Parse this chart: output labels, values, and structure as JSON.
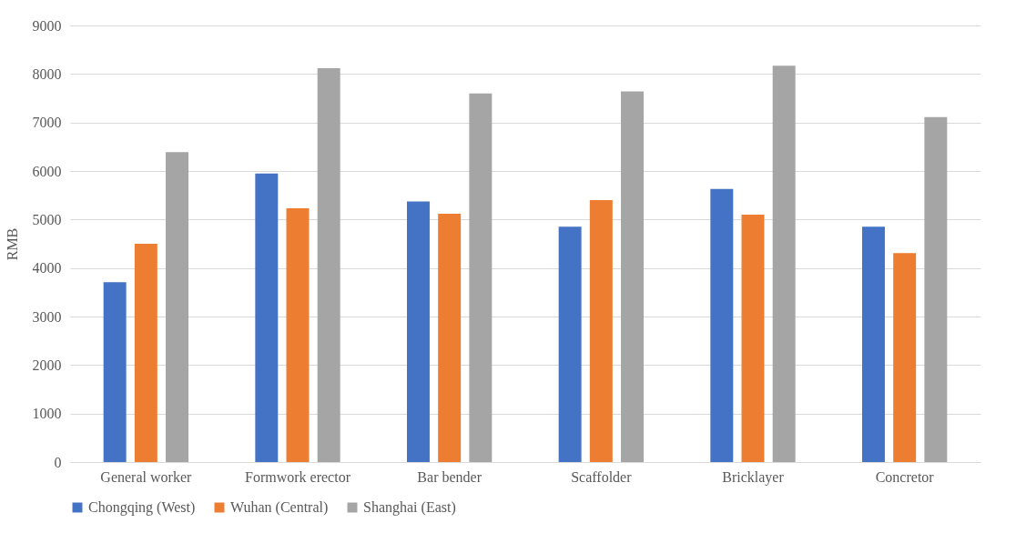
{
  "chart_data": {
    "type": "bar",
    "ylabel": "RMB",
    "categories": [
      "General worker",
      "Formwork erector",
      "Bar bender",
      "Scaffolder",
      "Bricklayer",
      "Concretor"
    ],
    "series": [
      {
        "name": "Chongqing (West)",
        "color": "#4472c4",
        "values": [
          3710,
          5950,
          5370,
          4850,
          5630,
          4850
        ]
      },
      {
        "name": "Wuhan (Central)",
        "color": "#ed7d31",
        "values": [
          4500,
          5230,
          5120,
          5400,
          5100,
          4310
        ]
      },
      {
        "name": "Shanghai (East)",
        "color": "#a5a5a5",
        "values": [
          6390,
          8120,
          7600,
          7640,
          8170,
          7110
        ]
      }
    ],
    "ylim": [
      0,
      9000
    ],
    "yticks": [
      0,
      1000,
      2000,
      3000,
      4000,
      5000,
      6000,
      7000,
      8000,
      9000
    ],
    "grid": "y",
    "legend": "bottom"
  }
}
